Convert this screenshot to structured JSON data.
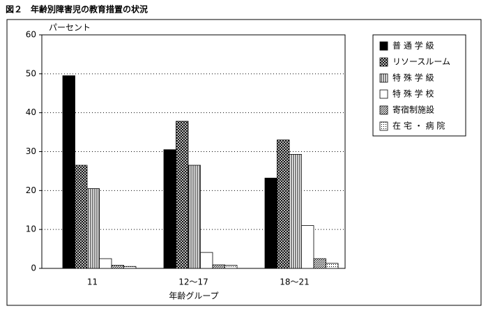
{
  "chart_data": {
    "type": "bar",
    "title": "図２　年齢別障害児の教育措置の状況",
    "y_label": "パーセント",
    "x_label": "年齢グループ",
    "categories": [
      "11",
      "12～17",
      "18～21"
    ],
    "series": [
      {
        "name": "普 通 学 級",
        "pattern": "solid",
        "color": "#000000",
        "values": [
          49.5,
          30.5,
          23.2
        ]
      },
      {
        "name": "リソースルーム",
        "pattern": "crosshatch",
        "color": "#000000",
        "values": [
          26.5,
          37.8,
          33
        ]
      },
      {
        "name": "特 殊 学 級",
        "pattern": "vertical",
        "color": "#000000",
        "values": [
          20.5,
          26.5,
          29.3
        ]
      },
      {
        "name": "特 殊 学 校",
        "pattern": "none",
        "color": "#000000",
        "values": [
          2.5,
          4.1,
          11
        ]
      },
      {
        "name": "寄宿制施設",
        "pattern": "diagonal",
        "color": "#000000",
        "values": [
          0.8,
          0.9,
          2.5
        ]
      },
      {
        "name": "在 宅 ・ 病 院",
        "pattern": "dots",
        "color": "#000000",
        "values": [
          0.5,
          0.8,
          1.3
        ]
      }
    ],
    "ylim": [
      0,
      60
    ],
    "yticks": [
      0,
      10,
      20,
      30,
      40,
      50,
      60
    ],
    "grid": true,
    "legend": "right"
  }
}
